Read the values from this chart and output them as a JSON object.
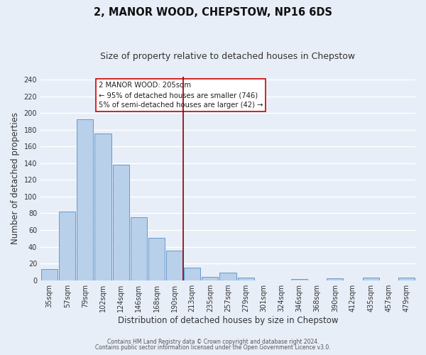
{
  "title": "2, MANOR WOOD, CHEPSTOW, NP16 6DS",
  "subtitle": "Size of property relative to detached houses in Chepstow",
  "xlabel": "Distribution of detached houses by size in Chepstow",
  "ylabel": "Number of detached properties",
  "bar_labels": [
    "35sqm",
    "57sqm",
    "79sqm",
    "102sqm",
    "124sqm",
    "146sqm",
    "168sqm",
    "190sqm",
    "213sqm",
    "235sqm",
    "257sqm",
    "279sqm",
    "301sqm",
    "324sqm",
    "346sqm",
    "368sqm",
    "390sqm",
    "412sqm",
    "435sqm",
    "457sqm",
    "479sqm"
  ],
  "bar_heights": [
    13,
    82,
    193,
    176,
    138,
    75,
    51,
    35,
    15,
    4,
    9,
    3,
    0,
    0,
    1,
    0,
    2,
    0,
    3,
    0,
    3
  ],
  "bar_color": "#b8d0ea",
  "bar_edge_color": "#6699cc",
  "vline_color": "#8b0000",
  "legend_title": "2 MANOR WOOD: 205sqm",
  "legend_line1": "← 95% of detached houses are smaller (746)",
  "legend_line2": "5% of semi-detached houses are larger (42) →",
  "ylim": [
    0,
    244
  ],
  "yticks": [
    0,
    20,
    40,
    60,
    80,
    100,
    120,
    140,
    160,
    180,
    200,
    220,
    240
  ],
  "footer1": "Contains HM Land Registry data © Crown copyright and database right 2024.",
  "footer2": "Contains public sector information licensed under the Open Government Licence v3.0.",
  "background_color": "#e8eef8",
  "plot_bg_color": "#e8eef8",
  "grid_color": "#ffffff",
  "title_fontsize": 10.5,
  "subtitle_fontsize": 9,
  "label_fontsize": 8.5,
  "tick_fontsize": 7,
  "footer_fontsize": 5.5
}
